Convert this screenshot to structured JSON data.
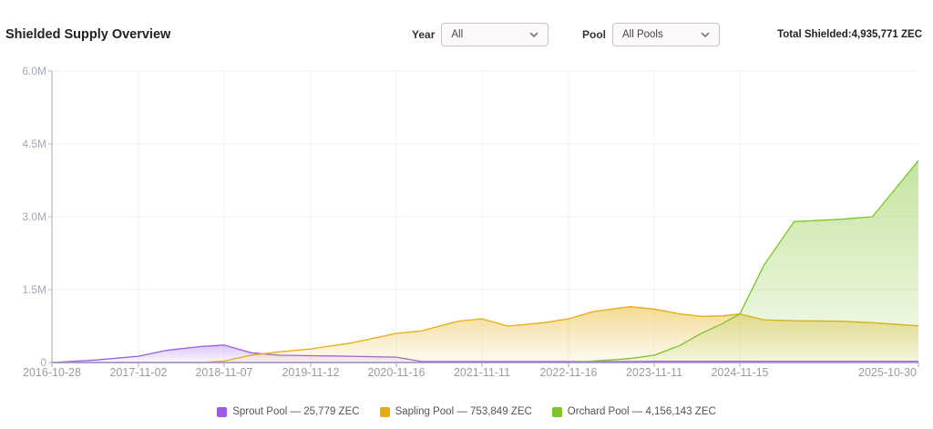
{
  "header": {
    "title": "Shielded Supply Overview",
    "year_filter": {
      "label": "Year",
      "value": "All"
    },
    "pool_filter": {
      "label": "Pool",
      "value": "All Pools"
    },
    "total_label": "Total Shielded:",
    "total_value": "4,935,771 ZEC"
  },
  "legend": [
    {
      "label": "Sprout Pool — 25,779 ZEC",
      "color": "#9b5de5"
    },
    {
      "label": "Sapling Pool — 753,849 ZEC",
      "color": "#e6ad12"
    },
    {
      "label": "Orchard Pool — 4,156,143 ZEC",
      "color": "#7ec42a"
    }
  ],
  "chart_data": {
    "type": "area",
    "title": "Shielded Supply Overview",
    "xlabel": "",
    "ylabel": "",
    "ylim": [
      0,
      6000000
    ],
    "yticks": [
      "0",
      "1.5M",
      "3.0M",
      "4.5M",
      "6.0M"
    ],
    "ytick_values": [
      0,
      1500000,
      3000000,
      4500000,
      6000000
    ],
    "xticks": [
      "2016-10-28",
      "2017-11-02",
      "2018-11-07",
      "2019-11-12",
      "2020-11-16",
      "2021-11-11",
      "2022-11-16",
      "2023-11-11",
      "2024-11-15",
      "2025-10-30"
    ],
    "grid": true,
    "legend_position": "bottom",
    "x": [
      "2016-10-28",
      "2017-05-01",
      "2017-11-02",
      "2018-03-01",
      "2018-08-01",
      "2018-11-07",
      "2019-03-01",
      "2019-07-01",
      "2019-11-12",
      "2020-05-01",
      "2020-11-16",
      "2021-03-01",
      "2021-08-01",
      "2021-11-11",
      "2022-03-01",
      "2022-08-01",
      "2022-11-16",
      "2023-03-01",
      "2023-08-01",
      "2023-11-11",
      "2024-03-01",
      "2024-06-01",
      "2024-09-01",
      "2024-11-15",
      "2025-01-01",
      "2025-03-01",
      "2025-06-01",
      "2025-08-01",
      "2025-10-30"
    ],
    "series": [
      {
        "name": "Sprout Pool",
        "color": "#9b5de5",
        "values": [
          0,
          50000,
          130000,
          250000,
          330000,
          360000,
          200000,
          150000,
          140000,
          130000,
          110000,
          20000,
          20000,
          20000,
          20000,
          20000,
          20000,
          20000,
          20000,
          25000,
          25000,
          25000,
          25000,
          25000,
          25779,
          25779,
          25779,
          25779,
          25779
        ]
      },
      {
        "name": "Sapling Pool",
        "color": "#e6ad12",
        "values": [
          0,
          0,
          0,
          0,
          0,
          30000,
          150000,
          220000,
          280000,
          400000,
          600000,
          650000,
          850000,
          900000,
          750000,
          820000,
          900000,
          1050000,
          1150000,
          1100000,
          1000000,
          950000,
          960000,
          1000000,
          880000,
          860000,
          850000,
          820000,
          753849
        ]
      },
      {
        "name": "Orchard Pool",
        "color": "#7ec42a",
        "values": [
          0,
          0,
          0,
          0,
          0,
          0,
          0,
          0,
          0,
          0,
          0,
          0,
          0,
          0,
          0,
          0,
          0,
          30000,
          80000,
          150000,
          350000,
          600000,
          800000,
          1000000,
          2000000,
          2900000,
          2950000,
          3000000,
          4156143
        ]
      }
    ]
  }
}
